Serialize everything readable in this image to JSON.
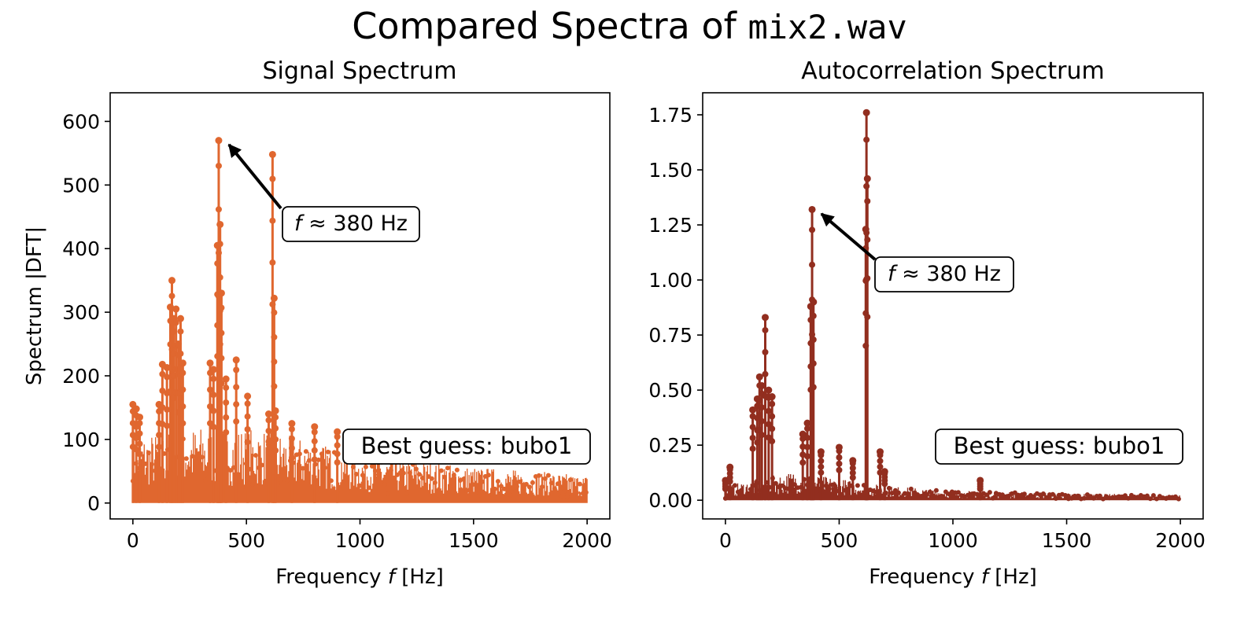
{
  "figure": {
    "title_prefix": "Compared Spectra of",
    "title_file": "mix2.wav"
  },
  "chart_data": [
    {
      "type": "line",
      "title": "Signal Spectrum",
      "xlabel_prefix": "Frequency",
      "xlabel_var": "f",
      "xlabel_unit": "[Hz]",
      "ylabel": "Spectrum |DFT|",
      "xlim": [
        -100,
        2100
      ],
      "ylim": [
        -25,
        645
      ],
      "xticks": [
        0,
        500,
        1000,
        1500,
        2000
      ],
      "xtick_labels": [
        "0",
        "500",
        "1000",
        "1500",
        "2000"
      ],
      "yticks": [
        0,
        100,
        200,
        300,
        400,
        500,
        600
      ],
      "ytick_labels": [
        "0",
        "100",
        "200",
        "300",
        "400",
        "500",
        "600"
      ],
      "color": "#e0672f",
      "markers": true,
      "grid": false,
      "peaks": [
        {
          "x": 0,
          "y": 155
        },
        {
          "x": 15,
          "y": 148
        },
        {
          "x": 30,
          "y": 135
        },
        {
          "x": 115,
          "y": 155
        },
        {
          "x": 130,
          "y": 218
        },
        {
          "x": 150,
          "y": 213
        },
        {
          "x": 165,
          "y": 308
        },
        {
          "x": 172,
          "y": 350
        },
        {
          "x": 180,
          "y": 290
        },
        {
          "x": 190,
          "y": 305
        },
        {
          "x": 200,
          "y": 250
        },
        {
          "x": 210,
          "y": 290
        },
        {
          "x": 220,
          "y": 220
        },
        {
          "x": 340,
          "y": 220
        },
        {
          "x": 355,
          "y": 210
        },
        {
          "x": 372,
          "y": 405
        },
        {
          "x": 378,
          "y": 570
        },
        {
          "x": 384,
          "y": 438
        },
        {
          "x": 390,
          "y": 330
        },
        {
          "x": 410,
          "y": 195
        },
        {
          "x": 455,
          "y": 225
        },
        {
          "x": 505,
          "y": 168
        },
        {
          "x": 598,
          "y": 140
        },
        {
          "x": 615,
          "y": 548
        },
        {
          "x": 622,
          "y": 322
        },
        {
          "x": 628,
          "y": 145
        },
        {
          "x": 700,
          "y": 125
        },
        {
          "x": 800,
          "y": 120
        },
        {
          "x": 900,
          "y": 112
        }
      ],
      "floor": [
        {
          "x": 0,
          "y": 95
        },
        {
          "x": 300,
          "y": 110
        },
        {
          "x": 600,
          "y": 105
        },
        {
          "x": 1000,
          "y": 70
        },
        {
          "x": 1500,
          "y": 52
        },
        {
          "x": 2000,
          "y": 40
        }
      ],
      "annotation": {
        "text_var": "f",
        "text_rest": "≈ 380 Hz",
        "x": 380,
        "y": 570
      },
      "best_guess": "Best guess: bubo1"
    },
    {
      "type": "line",
      "title": "Autocorrelation Spectrum",
      "xlabel_prefix": "Frequency",
      "xlabel_var": "f",
      "xlabel_unit": "[Hz]",
      "ylabel": "",
      "xlim": [
        -100,
        2100
      ],
      "ylim": [
        -0.085,
        1.85
      ],
      "xticks": [
        0,
        500,
        1000,
        1500,
        2000
      ],
      "xtick_labels": [
        "0",
        "500",
        "1000",
        "1500",
        "2000"
      ],
      "yticks": [
        0,
        0.25,
        0.5,
        0.75,
        1.0,
        1.25,
        1.5,
        1.75
      ],
      "ytick_labels": [
        "0.00",
        "0.25",
        "0.50",
        "0.75",
        "1.00",
        "1.25",
        "1.50",
        "1.75"
      ],
      "color": "#922e1f",
      "markers": true,
      "grid": false,
      "peaks": [
        {
          "x": 0,
          "y": 0.09
        },
        {
          "x": 20,
          "y": 0.15
        },
        {
          "x": 120,
          "y": 0.41
        },
        {
          "x": 140,
          "y": 0.46
        },
        {
          "x": 150,
          "y": 0.56
        },
        {
          "x": 160,
          "y": 0.52
        },
        {
          "x": 175,
          "y": 0.83
        },
        {
          "x": 190,
          "y": 0.5
        },
        {
          "x": 205,
          "y": 0.47
        },
        {
          "x": 340,
          "y": 0.3
        },
        {
          "x": 360,
          "y": 0.35
        },
        {
          "x": 375,
          "y": 0.88
        },
        {
          "x": 381,
          "y": 1.32
        },
        {
          "x": 387,
          "y": 0.9
        },
        {
          "x": 420,
          "y": 0.22
        },
        {
          "x": 500,
          "y": 0.24
        },
        {
          "x": 560,
          "y": 0.18
        },
        {
          "x": 617,
          "y": 1.23
        },
        {
          "x": 620,
          "y": 1.76
        },
        {
          "x": 624,
          "y": 1.46
        },
        {
          "x": 680,
          "y": 0.22
        },
        {
          "x": 700,
          "y": 0.13
        },
        {
          "x": 1120,
          "y": 0.09
        }
      ],
      "floor": [
        {
          "x": 0,
          "y": 0.06
        },
        {
          "x": 300,
          "y": 0.12
        },
        {
          "x": 700,
          "y": 0.06
        },
        {
          "x": 1000,
          "y": 0.04
        },
        {
          "x": 1500,
          "y": 0.03
        },
        {
          "x": 2000,
          "y": 0.02
        }
      ],
      "annotation": {
        "text_var": "f",
        "text_rest": "≈ 380 Hz",
        "x": 380,
        "y": 1.32
      },
      "best_guess": "Best guess: bubo1"
    }
  ]
}
